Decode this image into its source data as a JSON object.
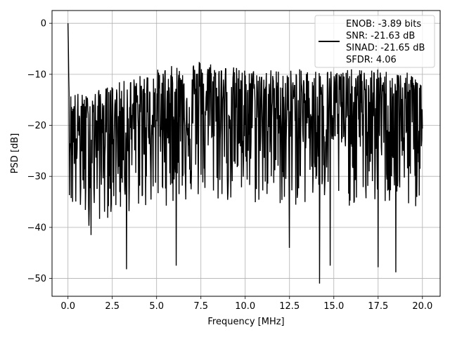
{
  "chart_data": {
    "type": "line",
    "title": "",
    "xlabel": "Frequency [MHz]",
    "ylabel": "PSD [dB]",
    "xlim": [
      -0.9,
      21.0
    ],
    "ylim": [
      -53.5,
      2.5
    ],
    "xticks": [
      0.0,
      2.5,
      5.0,
      7.5,
      10.0,
      12.5,
      15.0,
      17.5,
      20.0
    ],
    "xtick_labels": [
      "0.0",
      "2.5",
      "5.0",
      "7.5",
      "10.0",
      "12.5",
      "15.0",
      "17.5",
      "20.0"
    ],
    "yticks": [
      0,
      -10,
      -20,
      -30,
      -40,
      -50
    ],
    "ytick_labels": [
      "0",
      "−10",
      "−20",
      "−30",
      "−40",
      "−50"
    ],
    "grid": true,
    "legend_position": "top-right",
    "line_color": "#000000",
    "grid_color": "#b0b0b0",
    "legend_lines": [
      "ENOB: -3.89 bits",
      "SNR: -21.63 dB",
      "SINAD: -21.65 dB",
      "SFDR: 4.06"
    ],
    "series": [
      {
        "x_start": 0.0,
        "x_end": 20.0,
        "num_points": 1000,
        "noise_floor_envelope": {
          "x": [
            0.0,
            1.0,
            2.5,
            5.0,
            7.5,
            10.0,
            12.5,
            15.0,
            17.5,
            20.0
          ],
          "upper": [
            -13,
            -14,
            -12,
            -9,
            -7,
            -9,
            -9,
            -9,
            -9,
            -10
          ],
          "median": [
            -22,
            -22,
            -21,
            -19,
            -17,
            -18,
            -18,
            -18,
            -18,
            -19
          ],
          "lower": [
            -37,
            -40,
            -38,
            -36,
            -35,
            -36,
            -36,
            -36,
            -36,
            -37
          ]
        },
        "peaks": [
          {
            "x": 0.0,
            "y": 0.0
          },
          {
            "x": 0.02,
            "y": -4.0
          },
          {
            "x": 0.05,
            "y": -10.0
          }
        ],
        "dips": [
          {
            "x": 1.3,
            "y": -41.5
          },
          {
            "x": 3.3,
            "y": -48.2
          },
          {
            "x": 6.1,
            "y": -47.5
          },
          {
            "x": 12.5,
            "y": -44.0
          },
          {
            "x": 14.2,
            "y": -51.0
          },
          {
            "x": 14.8,
            "y": -47.5
          },
          {
            "x": 17.5,
            "y": -47.8
          },
          {
            "x": 18.5,
            "y": -48.8
          }
        ]
      }
    ]
  }
}
